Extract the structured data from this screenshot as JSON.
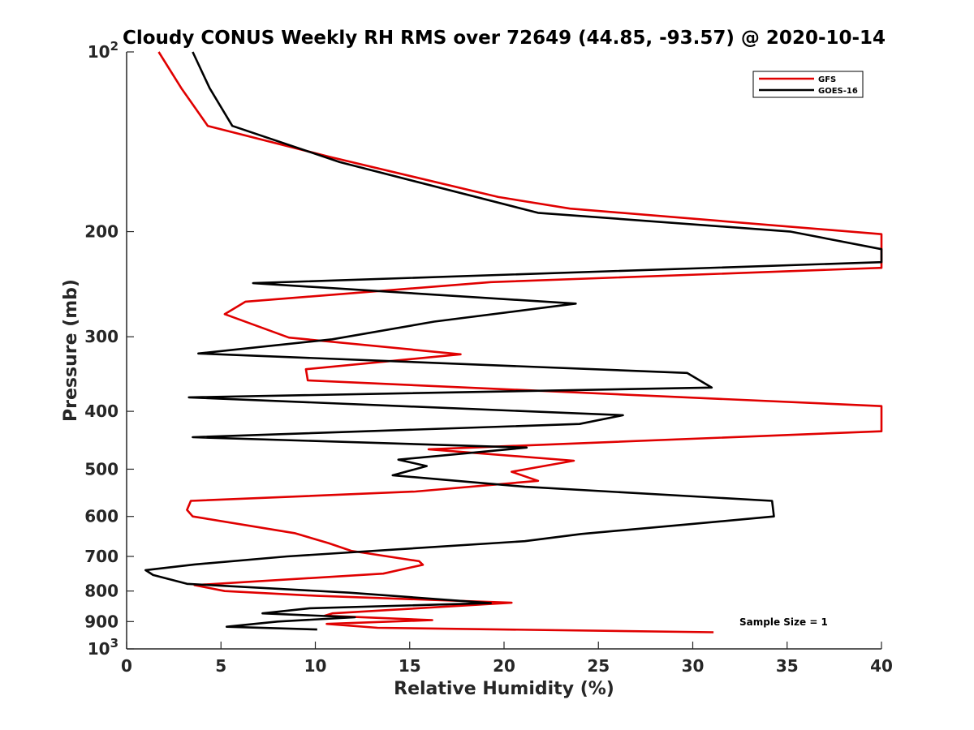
{
  "chart_data": {
    "type": "line",
    "title": "Cloudy CONUS Weekly RH RMS over 72649 (44.85, -93.57) @ 2020-10-14",
    "xlabel": "Relative Humidity (%)",
    "ylabel": "Pressure (mb)",
    "xlim": [
      0,
      40
    ],
    "ylim": [
      100,
      1000
    ],
    "y_scale": "log",
    "y_reversed": true,
    "grid": false,
    "legend_position": "top-right",
    "x_ticks": [
      0,
      5,
      10,
      15,
      20,
      25,
      30,
      35,
      40
    ],
    "x_tick_labels": [
      "0",
      "5",
      "10",
      "15",
      "20",
      "25",
      "30",
      "35",
      "40"
    ],
    "y_ticks": [
      100,
      200,
      300,
      400,
      500,
      600,
      700,
      800,
      900,
      1000
    ],
    "y_tick_labels": [
      {
        "base": "10",
        "exp": "2"
      },
      {
        "base": "200",
        "exp": ""
      },
      {
        "base": "300",
        "exp": ""
      },
      {
        "base": "400",
        "exp": ""
      },
      {
        "base": "500",
        "exp": ""
      },
      {
        "base": "600",
        "exp": ""
      },
      {
        "base": "700",
        "exp": ""
      },
      {
        "base": "800",
        "exp": ""
      },
      {
        "base": "900",
        "exp": ""
      },
      {
        "base": "10",
        "exp": "3"
      }
    ],
    "annotation": "Sample Size = 1",
    "series": [
      {
        "name": "GFS",
        "color": "#e00000",
        "points": [
          [
            1.7,
            100
          ],
          [
            2.9,
            115
          ],
          [
            4.3,
            133
          ],
          [
            10.8,
            150
          ],
          [
            19.7,
            175
          ],
          [
            23.5,
            183
          ],
          [
            40,
            202
          ],
          [
            40,
            230
          ],
          [
            19.3,
            243
          ],
          [
            6.3,
            262
          ],
          [
            5.2,
            275
          ],
          [
            8.6,
            301
          ],
          [
            17.7,
            321
          ],
          [
            9.5,
            340
          ],
          [
            9.6,
            355
          ],
          [
            40,
            392
          ],
          [
            40,
            432
          ],
          [
            16.0,
            463
          ],
          [
            23.7,
            484
          ],
          [
            20.4,
            505
          ],
          [
            21.8,
            523
          ],
          [
            15.3,
            545
          ],
          [
            3.4,
            565
          ],
          [
            3.2,
            585
          ],
          [
            3.5,
            600
          ],
          [
            8.9,
            640
          ],
          [
            10.7,
            665
          ],
          [
            11.9,
            685
          ],
          [
            15.5,
            713
          ],
          [
            15.7,
            723
          ],
          [
            13.6,
            748
          ],
          [
            3.6,
            782
          ],
          [
            5.2,
            800
          ],
          [
            10.1,
            815
          ],
          [
            20.4,
            837
          ],
          [
            10.9,
            872
          ],
          [
            10.5,
            880
          ],
          [
            16.2,
            895
          ],
          [
            10.6,
            908
          ],
          [
            13.3,
            922
          ],
          [
            31.1,
            938
          ]
        ]
      },
      {
        "name": "GOES-16",
        "color": "#000000",
        "points": [
          [
            3.5,
            100
          ],
          [
            4.4,
            115
          ],
          [
            5.6,
            133
          ],
          [
            11.3,
            153
          ],
          [
            21.8,
            186
          ],
          [
            35.2,
            200
          ],
          [
            40,
            214
          ],
          [
            40,
            225
          ],
          [
            6.7,
            244
          ],
          [
            23.8,
            264
          ],
          [
            16.3,
            283
          ],
          [
            10.9,
            303
          ],
          [
            3.8,
            320
          ],
          [
            29.7,
            345
          ],
          [
            31.0,
            365
          ],
          [
            3.3,
            379
          ],
          [
            26.3,
            406
          ],
          [
            24.0,
            420
          ],
          [
            3.5,
            442
          ],
          [
            21.2,
            460
          ],
          [
            14.4,
            482
          ],
          [
            15.9,
            494
          ],
          [
            14.1,
            512
          ],
          [
            21.1,
            535
          ],
          [
            34.2,
            565
          ],
          [
            34.3,
            600
          ],
          [
            29.4,
            620
          ],
          [
            24.1,
            642
          ],
          [
            21.1,
            660
          ],
          [
            8.5,
            700
          ],
          [
            3.6,
            722
          ],
          [
            1.0,
            738
          ],
          [
            1.4,
            752
          ],
          [
            3.2,
            778
          ],
          [
            11.8,
            805
          ],
          [
            19.3,
            838
          ],
          [
            9.7,
            855
          ],
          [
            7.2,
            872
          ],
          [
            12.1,
            885
          ],
          [
            8.0,
            900
          ],
          [
            5.3,
            918
          ],
          [
            10.1,
            928
          ]
        ]
      }
    ]
  }
}
